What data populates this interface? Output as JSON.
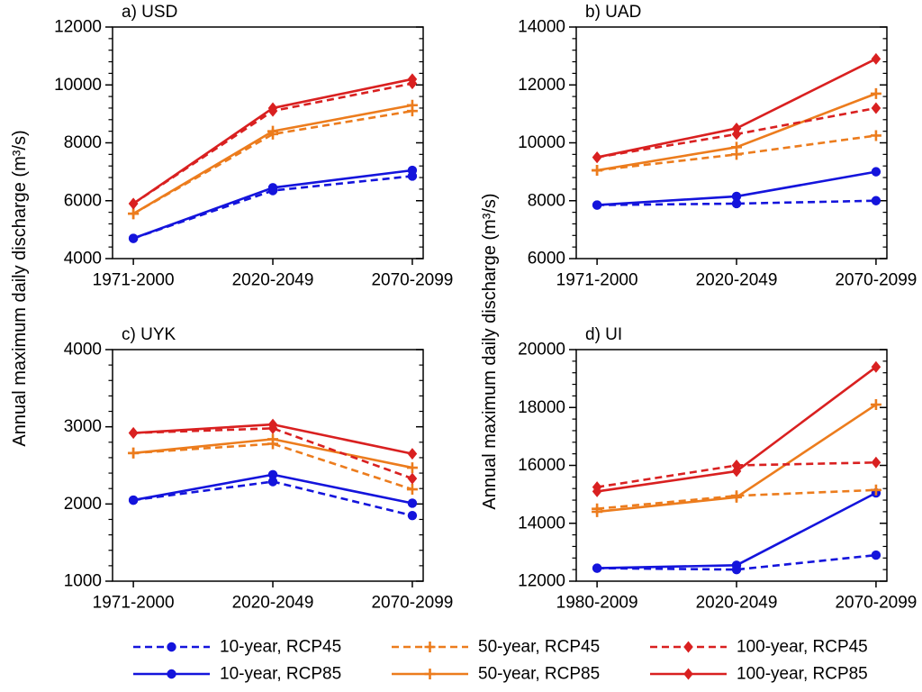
{
  "figure": {
    "ylabel": "Annual maximum daily discharge (m³/s)",
    "colors": {
      "blue": "#1414dc",
      "orange": "#ec7c1d",
      "red": "#d92020"
    },
    "legend": {
      "row1": [
        {
          "label": "10-year, RCP45",
          "color": "blue",
          "style": "dashed",
          "marker": "circle"
        },
        {
          "label": "50-year, RCP45",
          "color": "orange",
          "style": "dashed",
          "marker": "plus"
        },
        {
          "label": "100-year, RCP45",
          "color": "red",
          "style": "dashed",
          "marker": "diamond"
        }
      ],
      "row2": [
        {
          "label": "10-year, RCP85",
          "color": "blue",
          "style": "solid",
          "marker": "circle"
        },
        {
          "label": "50-year, RCP85",
          "color": "orange",
          "style": "solid",
          "marker": "plus"
        },
        {
          "label": "100-year, RCP85",
          "color": "red",
          "style": "solid",
          "marker": "diamond"
        }
      ]
    }
  },
  "chart_data": [
    {
      "type": "line",
      "panel": "a",
      "title": "a) USD",
      "categories": [
        "1971-2000",
        "2020-2049",
        "2070-2099"
      ],
      "ylim": [
        4000,
        12000
      ],
      "ytick_step": 2000,
      "minor_step": 400,
      "grid": false,
      "series": [
        {
          "name": "10-year, RCP45",
          "color": "blue",
          "style": "dashed",
          "marker": "circle",
          "values": [
            4700,
            6350,
            6850
          ]
        },
        {
          "name": "10-year, RCP85",
          "color": "blue",
          "style": "solid",
          "marker": "circle",
          "values": [
            4700,
            6450,
            7050
          ]
        },
        {
          "name": "50-year, RCP45",
          "color": "orange",
          "style": "dashed",
          "marker": "plus",
          "values": [
            5550,
            8300,
            9100
          ]
        },
        {
          "name": "50-year, RCP85",
          "color": "orange",
          "style": "solid",
          "marker": "plus",
          "values": [
            5550,
            8400,
            9300
          ]
        },
        {
          "name": "100-year, RCP45",
          "color": "red",
          "style": "dashed",
          "marker": "diamond",
          "values": [
            5900,
            9100,
            10050
          ]
        },
        {
          "name": "100-year, RCP85",
          "color": "red",
          "style": "solid",
          "marker": "diamond",
          "values": [
            5900,
            9200,
            10200
          ]
        }
      ]
    },
    {
      "type": "line",
      "panel": "b",
      "title": "b) UAD",
      "categories": [
        "1971-2000",
        "2020-2049",
        "2070-2099"
      ],
      "ylim": [
        6000,
        14000
      ],
      "ytick_step": 2000,
      "minor_step": 400,
      "grid": false,
      "series": [
        {
          "name": "10-year, RCP45",
          "color": "blue",
          "style": "dashed",
          "marker": "circle",
          "values": [
            7850,
            7900,
            8000
          ]
        },
        {
          "name": "10-year, RCP85",
          "color": "blue",
          "style": "solid",
          "marker": "circle",
          "values": [
            7850,
            8150,
            9000
          ]
        },
        {
          "name": "50-year, RCP45",
          "color": "orange",
          "style": "dashed",
          "marker": "plus",
          "values": [
            9050,
            9600,
            10250
          ]
        },
        {
          "name": "50-year, RCP85",
          "color": "orange",
          "style": "solid",
          "marker": "plus",
          "values": [
            9050,
            9850,
            11700
          ]
        },
        {
          "name": "100-year, RCP45",
          "color": "red",
          "style": "dashed",
          "marker": "diamond",
          "values": [
            9500,
            10300,
            11200
          ]
        },
        {
          "name": "100-year, RCP85",
          "color": "red",
          "style": "solid",
          "marker": "diamond",
          "values": [
            9500,
            10500,
            12900
          ]
        }
      ]
    },
    {
      "type": "line",
      "panel": "c",
      "title": "c) UYK",
      "categories": [
        "1971-2000",
        "2020-2049",
        "2070-2099"
      ],
      "ylim": [
        1000,
        4000
      ],
      "ytick_step": 1000,
      "minor_step": 200,
      "grid": false,
      "series": [
        {
          "name": "10-year, RCP45",
          "color": "blue",
          "style": "dashed",
          "marker": "circle",
          "values": [
            2050,
            2290,
            1850
          ]
        },
        {
          "name": "10-year, RCP85",
          "color": "blue",
          "style": "solid",
          "marker": "circle",
          "values": [
            2050,
            2380,
            2010
          ]
        },
        {
          "name": "50-year, RCP45",
          "color": "orange",
          "style": "dashed",
          "marker": "plus",
          "values": [
            2660,
            2780,
            2190
          ]
        },
        {
          "name": "50-year, RCP85",
          "color": "orange",
          "style": "solid",
          "marker": "plus",
          "values": [
            2660,
            2840,
            2470
          ]
        },
        {
          "name": "100-year, RCP45",
          "color": "red",
          "style": "dashed",
          "marker": "diamond",
          "values": [
            2920,
            2980,
            2330
          ]
        },
        {
          "name": "100-year, RCP85",
          "color": "red",
          "style": "solid",
          "marker": "diamond",
          "values": [
            2920,
            3030,
            2650
          ]
        }
      ]
    },
    {
      "type": "line",
      "panel": "d",
      "title": "d) UI",
      "categories": [
        "1980-2009",
        "2020-2049",
        "2070-2099"
      ],
      "ylim": [
        12000,
        20000
      ],
      "ytick_step": 2000,
      "minor_step": 400,
      "grid": false,
      "series": [
        {
          "name": "10-year, RCP45",
          "color": "blue",
          "style": "dashed",
          "marker": "circle",
          "values": [
            12450,
            12400,
            12900
          ]
        },
        {
          "name": "10-year, RCP85",
          "color": "blue",
          "style": "solid",
          "marker": "circle",
          "values": [
            12450,
            12550,
            15050
          ]
        },
        {
          "name": "50-year, RCP45",
          "color": "orange",
          "style": "dashed",
          "marker": "plus",
          "values": [
            14500,
            14950,
            15150
          ]
        },
        {
          "name": "50-year, RCP85",
          "color": "orange",
          "style": "solid",
          "marker": "plus",
          "values": [
            14400,
            14900,
            18100
          ]
        },
        {
          "name": "100-year, RCP45",
          "color": "red",
          "style": "dashed",
          "marker": "diamond",
          "values": [
            15250,
            16000,
            16100
          ]
        },
        {
          "name": "100-year, RCP85",
          "color": "red",
          "style": "solid",
          "marker": "diamond",
          "values": [
            15100,
            15800,
            19400
          ]
        }
      ]
    }
  ]
}
